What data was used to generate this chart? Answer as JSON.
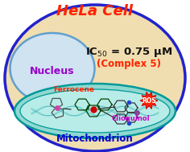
{
  "title": "HeLa Cell",
  "title_color": "#ff2200",
  "nucleus_label": "Nucleus",
  "nucleus_label_color": "#9900cc",
  "complex_text": "(Complex 5)",
  "ic50_color": "#111111",
  "complex_color": "#ff2200",
  "mitochondrion_label": "Mitochondrion",
  "mitochondrion_color": "#0000cc",
  "ferrocene_label": "Ferrocene",
  "ferrocene_color": "#ff2200",
  "clioquinol_label": "Clioquinol",
  "clioquinol_color": "#cc00cc",
  "ros_label": "ROS",
  "ros_color": "#ffffff",
  "outer_ellipse_color": "#2222cc",
  "outer_bg_color": "#f0deb0",
  "nucleus_bg_color": "#cce4f8",
  "mito_bg_color": "#90d8d0",
  "background_color": "#ffffff",
  "ic50_mu": "IC₅₀ = 0.75 μM"
}
